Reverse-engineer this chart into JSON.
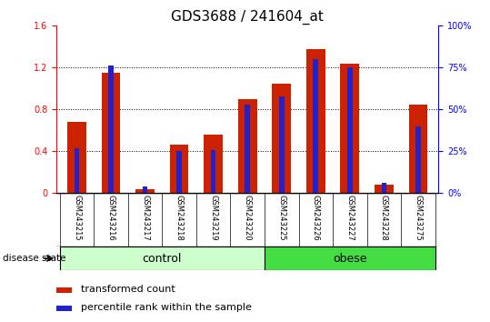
{
  "title": "GDS3688 / 241604_at",
  "samples": [
    "GSM243215",
    "GSM243216",
    "GSM243217",
    "GSM243218",
    "GSM243219",
    "GSM243220",
    "GSM243225",
    "GSM243226",
    "GSM243227",
    "GSM243228",
    "GSM243275"
  ],
  "transformed_count": [
    0.68,
    1.15,
    0.04,
    0.46,
    0.56,
    0.9,
    1.05,
    1.38,
    1.24,
    0.08,
    0.85
  ],
  "percentile_rank_pct": [
    27,
    76,
    4,
    25,
    26,
    53,
    58,
    80,
    75,
    6,
    40
  ],
  "ylim_left": [
    0,
    1.6
  ],
  "ylim_right": [
    0,
    100
  ],
  "yticks_left": [
    0,
    0.4,
    0.8,
    1.2,
    1.6
  ],
  "yticks_right": [
    0,
    25,
    50,
    75,
    100
  ],
  "bar_color_red": "#cc2200",
  "bar_color_blue": "#2222cc",
  "control_n": 6,
  "control_label": "control",
  "obese_label": "obese",
  "disease_state_label": "disease state",
  "legend_red": "transformed count",
  "legend_blue": "percentile rank within the sample",
  "control_color": "#ccffcc",
  "obese_color": "#44dd44",
  "tick_label_area_color": "#c8c8c8",
  "red_bar_width": 0.55,
  "blue_bar_width": 0.15,
  "title_fontsize": 11,
  "tick_fontsize": 7,
  "sample_fontsize": 6,
  "legend_fontsize": 8,
  "group_fontsize": 9
}
